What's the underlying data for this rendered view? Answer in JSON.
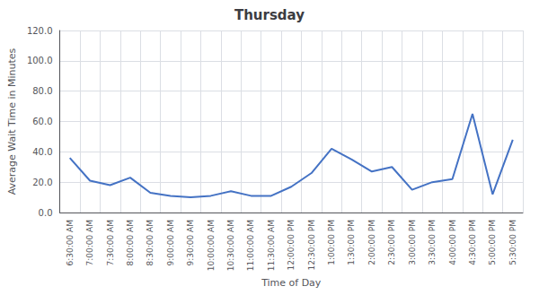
{
  "chart_data": {
    "type": "line",
    "title": "Thursday",
    "xlabel": "Time of Day",
    "ylabel": "Average Wait Time in Minutes",
    "categories": [
      "6:30:00 AM",
      "7:00:00 AM",
      "7:30:00 AM",
      "8:00:00 AM",
      "8:30:00 AM",
      "9:00:00 AM",
      "9:30:00 AM",
      "10:00:00 AM",
      "10:30:00 AM",
      "11:00:00 AM",
      "11:30:00 AM",
      "12:00:00 PM",
      "12:30:00 PM",
      "1:00:00 PM",
      "1:30:00 PM",
      "2:00:00 PM",
      "2:30:00 PM",
      "3:00:00 PM",
      "3:30:00 PM",
      "4:00:00 PM",
      "4:30:00 PM",
      "5:00:00 PM",
      "5:30:00 PM"
    ],
    "values": [
      36,
      21,
      18,
      23,
      13,
      11,
      10,
      11,
      14,
      11,
      11,
      17,
      26,
      42,
      35,
      27,
      30,
      15,
      20,
      22,
      65,
      12,
      48
    ],
    "color": "#4472C4",
    "ylim": [
      0,
      120
    ],
    "yticks": [
      {
        "value": 0,
        "label": "0.0"
      },
      {
        "value": 20,
        "label": "20.0"
      },
      {
        "value": 40,
        "label": "40.0"
      },
      {
        "value": 60,
        "label": "60.0"
      },
      {
        "value": 80,
        "label": "80.0"
      },
      {
        "value": 100,
        "label": "100.0"
      },
      {
        "value": 120,
        "label": "120.0"
      }
    ],
    "grid": true
  }
}
